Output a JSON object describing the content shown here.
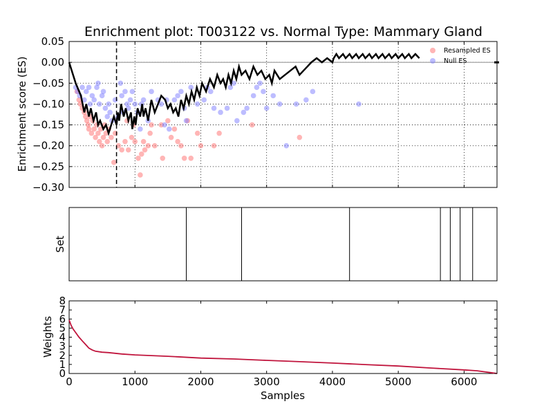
{
  "colors": {
    "es_line": "#000000",
    "resampled": "#ff6b6b",
    "null": "#7b7bff",
    "weights_line": "#c0143c",
    "grid": "#000000"
  },
  "chart_data": [
    {
      "type": "line",
      "title": "Enrichment plot: T003122 vs. Normal Type: Mammary Gland",
      "xlabel": "",
      "ylabel": "Enrichment score (ES)",
      "xlim": [
        0,
        6500
      ],
      "ylim": [
        -0.3,
        0.05
      ],
      "yticks": [
        0.05,
        0.0,
        -0.05,
        -0.1,
        -0.15,
        -0.2,
        -0.25,
        -0.3
      ],
      "ytick_labels": [
        "0.05",
        "0.00",
        "−0.05",
        "−0.10",
        "−0.15",
        "−0.20",
        "−0.25",
        "−0.30"
      ],
      "xticks": [
        0,
        1000,
        2000,
        3000,
        4000,
        5000,
        6000
      ],
      "grid": true,
      "grid_style": "dotted",
      "legend_position": "top-right",
      "legend": [
        "Resampled ES",
        "Null ES"
      ],
      "peak_x": 720,
      "es_series": {
        "x": [
          0,
          100,
          180,
          230,
          260,
          300,
          330,
          370,
          410,
          440,
          470,
          520,
          560,
          600,
          640,
          680,
          720,
          740,
          760,
          790,
          830,
          860,
          900,
          940,
          960,
          990,
          1010,
          1040,
          1080,
          1110,
          1130,
          1160,
          1200,
          1250,
          1300,
          1350,
          1400,
          1460,
          1500,
          1540,
          1580,
          1620,
          1660,
          1700,
          1740,
          1780,
          1820,
          1860,
          1900,
          1940,
          1980,
          2020,
          2080,
          2140,
          2200,
          2250,
          2300,
          2340,
          2380,
          2420,
          2460,
          2500,
          2540,
          2580,
          2620,
          2680,
          2740,
          2800,
          2860,
          2920,
          2980,
          3040,
          3080,
          3120,
          3200,
          3280,
          3360,
          3440,
          3500,
          3560,
          3620,
          3680,
          3760,
          3840,
          3920,
          4000,
          4020,
          4060,
          4100,
          4160,
          4200,
          4260,
          4300,
          4360,
          4400,
          4460,
          4500,
          4560,
          4600,
          4660,
          4700,
          4760,
          4800,
          4860,
          4900,
          4960,
          5000,
          5060,
          5100,
          5160,
          5200,
          5260,
          5320
        ],
        "y": [
          0.0,
          -0.05,
          -0.08,
          -0.12,
          -0.1,
          -0.13,
          -0.11,
          -0.14,
          -0.12,
          -0.15,
          -0.14,
          -0.16,
          -0.15,
          -0.17,
          -0.15,
          -0.13,
          -0.15,
          -0.12,
          -0.14,
          -0.1,
          -0.13,
          -0.11,
          -0.14,
          -0.12,
          -0.16,
          -0.13,
          -0.15,
          -0.11,
          -0.13,
          -0.1,
          -0.13,
          -0.11,
          -0.14,
          -0.09,
          -0.12,
          -0.1,
          -0.08,
          -0.09,
          -0.11,
          -0.1,
          -0.12,
          -0.11,
          -0.13,
          -0.09,
          -0.11,
          -0.08,
          -0.1,
          -0.07,
          -0.09,
          -0.06,
          -0.08,
          -0.05,
          -0.07,
          -0.04,
          -0.06,
          -0.03,
          -0.05,
          -0.04,
          -0.06,
          -0.03,
          -0.05,
          -0.02,
          -0.04,
          -0.01,
          -0.03,
          -0.02,
          -0.04,
          -0.01,
          -0.03,
          -0.02,
          -0.04,
          -0.03,
          -0.05,
          -0.02,
          -0.04,
          -0.03,
          -0.02,
          -0.01,
          -0.03,
          -0.02,
          -0.01,
          0.0,
          0.01,
          0.0,
          0.01,
          0.0,
          0.01,
          0.02,
          0.01,
          0.02,
          0.01,
          0.02,
          0.01,
          0.02,
          0.01,
          0.02,
          0.01,
          0.02,
          0.01,
          0.02,
          0.01,
          0.02,
          0.01,
          0.02,
          0.01,
          0.02,
          0.01,
          0.02,
          0.01,
          0.02,
          0.01,
          0.02,
          0.01
        ]
      },
      "resampled_points": [
        [
          120,
          -0.07
        ],
        [
          150,
          -0.09
        ],
        [
          170,
          -0.1
        ],
        [
          200,
          -0.11
        ],
        [
          230,
          -0.12
        ],
        [
          250,
          -0.13
        ],
        [
          270,
          -0.14
        ],
        [
          290,
          -0.15
        ],
        [
          300,
          -0.16
        ],
        [
          320,
          -0.13
        ],
        [
          340,
          -0.17
        ],
        [
          360,
          -0.14
        ],
        [
          380,
          -0.16
        ],
        [
          400,
          -0.18
        ],
        [
          420,
          -0.15
        ],
        [
          440,
          -0.17
        ],
        [
          460,
          -0.19
        ],
        [
          480,
          -0.16
        ],
        [
          500,
          -0.2
        ],
        [
          520,
          -0.18
        ],
        [
          540,
          -0.15
        ],
        [
          560,
          -0.17
        ],
        [
          580,
          -0.19
        ],
        [
          600,
          -0.16
        ],
        [
          640,
          -0.18
        ],
        [
          680,
          -0.24
        ],
        [
          700,
          -0.17
        ],
        [
          750,
          -0.2
        ],
        [
          800,
          -0.21
        ],
        [
          850,
          -0.19
        ],
        [
          880,
          -0.14
        ],
        [
          900,
          -0.21
        ],
        [
          950,
          -0.18
        ],
        [
          980,
          -0.15
        ],
        [
          1000,
          -0.19
        ],
        [
          1050,
          -0.23
        ],
        [
          1080,
          -0.27
        ],
        [
          1100,
          -0.22
        ],
        [
          1130,
          -0.19
        ],
        [
          1150,
          -0.21
        ],
        [
          1200,
          -0.2
        ],
        [
          1230,
          -0.17
        ],
        [
          1250,
          -0.15
        ],
        [
          1300,
          -0.2
        ],
        [
          1400,
          -0.15
        ],
        [
          1420,
          -0.23
        ],
        [
          1500,
          -0.14
        ],
        [
          1550,
          -0.18
        ],
        [
          1600,
          -0.16
        ],
        [
          1650,
          -0.19
        ],
        [
          1700,
          -0.2
        ],
        [
          1750,
          -0.23
        ],
        [
          1800,
          -0.14
        ],
        [
          1850,
          -0.23
        ],
        [
          1950,
          -0.17
        ],
        [
          2000,
          -0.2
        ],
        [
          2200,
          -0.2
        ],
        [
          2280,
          -0.17
        ],
        [
          2780,
          -0.15
        ],
        [
          3500,
          -0.18
        ]
      ],
      "null_points": [
        [
          100,
          -0.06
        ],
        [
          130,
          -0.07
        ],
        [
          160,
          -0.08
        ],
        [
          200,
          -0.06
        ],
        [
          230,
          -0.09
        ],
        [
          260,
          -0.07
        ],
        [
          300,
          -0.06
        ],
        [
          320,
          -0.1
        ],
        [
          350,
          -0.08
        ],
        [
          380,
          -0.09
        ],
        [
          420,
          -0.06
        ],
        [
          440,
          -0.05
        ],
        [
          460,
          -0.1
        ],
        [
          500,
          -0.08
        ],
        [
          520,
          -0.07
        ],
        [
          550,
          -0.11
        ],
        [
          580,
          -0.13
        ],
        [
          600,
          -0.1
        ],
        [
          620,
          -0.12
        ],
        [
          650,
          -0.14
        ],
        [
          700,
          -0.09
        ],
        [
          740,
          -0.13
        ],
        [
          780,
          -0.05
        ],
        [
          800,
          -0.08
        ],
        [
          820,
          -0.12
        ],
        [
          850,
          -0.07
        ],
        [
          880,
          -0.1
        ],
        [
          900,
          -0.11
        ],
        [
          930,
          -0.09
        ],
        [
          960,
          -0.07
        ],
        [
          1000,
          -0.1
        ],
        [
          1040,
          -0.12
        ],
        [
          1080,
          -0.16
        ],
        [
          1100,
          -0.1
        ],
        [
          1130,
          -0.09
        ],
        [
          1200,
          -0.14
        ],
        [
          1250,
          -0.07
        ],
        [
          1350,
          -0.09
        ],
        [
          1400,
          -0.1
        ],
        [
          1450,
          -0.15
        ],
        [
          1480,
          -0.09
        ],
        [
          1520,
          -0.16
        ],
        [
          1600,
          -0.09
        ],
        [
          1650,
          -0.08
        ],
        [
          1700,
          -0.07
        ],
        [
          1750,
          -0.11
        ],
        [
          1780,
          -0.14
        ],
        [
          1850,
          -0.06
        ],
        [
          1950,
          -0.1
        ],
        [
          2050,
          -0.09
        ],
        [
          2100,
          -0.06
        ],
        [
          2150,
          -0.07
        ],
        [
          2200,
          -0.11
        ],
        [
          2300,
          -0.12
        ],
        [
          2400,
          -0.11
        ],
        [
          2450,
          -0.06
        ],
        [
          2500,
          -0.05
        ],
        [
          2550,
          -0.14
        ],
        [
          2650,
          -0.12
        ],
        [
          2700,
          -0.11
        ],
        [
          2800,
          -0.08
        ],
        [
          2850,
          -0.06
        ],
        [
          2900,
          -0.05
        ],
        [
          2950,
          -0.07
        ],
        [
          3000,
          -0.11
        ],
        [
          3100,
          -0.08
        ],
        [
          3200,
          -0.1
        ],
        [
          3300,
          -0.2
        ],
        [
          3450,
          -0.1
        ],
        [
          3600,
          -0.09
        ],
        [
          3700,
          -0.07
        ],
        [
          4400,
          -0.1
        ]
      ]
    },
    {
      "type": "event",
      "title": "",
      "xlabel": "",
      "ylabel": "Set",
      "xlim": [
        0,
        6500
      ],
      "hits_x": [
        1780,
        2620,
        4260,
        5640,
        5790,
        5940,
        6130
      ]
    },
    {
      "type": "line",
      "title": "",
      "xlabel": "Samples",
      "ylabel": "Weights",
      "xlim": [
        0,
        6500
      ],
      "ylim": [
        0,
        8
      ],
      "yticks": [
        0,
        1,
        2,
        3,
        4,
        5,
        6,
        7,
        8
      ],
      "xticks": [
        0,
        1000,
        2000,
        3000,
        4000,
        5000,
        6000
      ],
      "series": [
        {
          "x": [
            0,
            30,
            60,
            100,
            150,
            200,
            250,
            300,
            350,
            400,
            500,
            600,
            800,
            1000,
            1500,
            2000,
            2500,
            3000,
            3500,
            4000,
            4500,
            5000,
            5500,
            6000,
            6200,
            6400,
            6500
          ],
          "y": [
            5.9,
            5.3,
            4.9,
            4.5,
            4.0,
            3.6,
            3.2,
            2.8,
            2.6,
            2.45,
            2.35,
            2.3,
            2.15,
            2.05,
            1.9,
            1.7,
            1.6,
            1.45,
            1.3,
            1.15,
            0.98,
            0.82,
            0.6,
            0.4,
            0.3,
            0.1,
            0.0
          ]
        }
      ]
    }
  ]
}
